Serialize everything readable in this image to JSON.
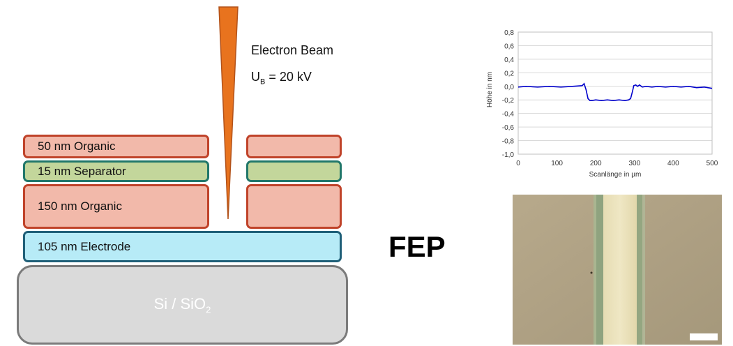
{
  "beam": {
    "label": "Electron Beam",
    "voltage_prefix": "U",
    "voltage_sub": "B",
    "voltage_value": "= 20 kV"
  },
  "layers": {
    "organic_top": "50 nm Organic",
    "separator": "15 nm Separator",
    "organic_bottom": "150 nm Organic",
    "electrode": "105 nm Electrode",
    "substrate_main": "Si / SiO",
    "substrate_sub": "2"
  },
  "fep_label": "FEP",
  "colors": {
    "organic": "#f2b9aa",
    "organic_border": "#c0432a",
    "separator": "#c3d69b",
    "separator_border": "#21776a",
    "electrode": "#b7ebf7",
    "electrode_border": "#1f5f78",
    "substrate": "#dadada",
    "beam": "#e8731e",
    "profile_line": "#0000cc"
  },
  "chart_data": {
    "type": "line",
    "xlabel": "Scanlänge in µm",
    "ylabel": "Höhe in nm",
    "xlim": [
      0,
      500
    ],
    "ylim": [
      -1.0,
      0.8
    ],
    "x_ticks": [
      "0",
      "100",
      "200",
      "300",
      "400",
      "500"
    ],
    "y_ticks": [
      "0,8",
      "0,6",
      "0,4",
      "0,2",
      "0,0",
      "-0,2",
      "-0,4",
      "-0,6",
      "-0,8",
      "-1,0"
    ],
    "grid": "horizontal",
    "series": [
      {
        "x": [
          0,
          20,
          50,
          80,
          110,
          140,
          165,
          170,
          175,
          180,
          185,
          190,
          200,
          215,
          230,
          245,
          260,
          275,
          285,
          290,
          295,
          298,
          303,
          308,
          313,
          320,
          330,
          345,
          360,
          380,
          400,
          420,
          440,
          460,
          480,
          500
        ],
        "y": [
          -0.01,
          0.0,
          -0.01,
          0.0,
          -0.01,
          0.0,
          0.01,
          0.04,
          -0.05,
          -0.18,
          -0.21,
          -0.21,
          -0.2,
          -0.21,
          -0.2,
          -0.21,
          -0.2,
          -0.21,
          -0.2,
          -0.18,
          -0.07,
          0.01,
          0.02,
          0.0,
          0.02,
          -0.01,
          0.0,
          -0.01,
          0.0,
          -0.01,
          0.0,
          -0.01,
          0.0,
          -0.02,
          -0.01,
          -0.03
        ]
      }
    ]
  }
}
